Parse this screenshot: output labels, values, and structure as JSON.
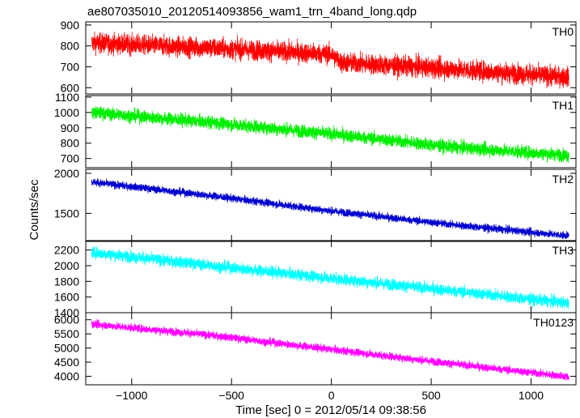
{
  "chart_data": {
    "type": "line",
    "title": "ae807035010_20120514093856_wam1_trn_4band_long.qdp",
    "xlabel": "Time [sec] 0 = 2012/05/14 09:38:56",
    "ylabel": "Counts/sec",
    "xlim": [
      -1230,
      1225
    ],
    "x_ticks": [
      -1000,
      -500,
      0,
      500,
      1000
    ],
    "x_tick_labels": [
      "−1000",
      "−500",
      "0",
      "500",
      "1000"
    ],
    "grid": false,
    "panels": [
      {
        "name": "TH0",
        "color": "#ff0000",
        "ylim": [
          570,
          915
        ],
        "y_ticks": [
          600,
          700,
          800,
          900
        ],
        "trend_x": [
          -1200,
          -600,
          0,
          50,
          600,
          1190
        ],
        "trend_y": [
          815,
          790,
          760,
          720,
          690,
          650
        ],
        "noise_amplitude": 45
      },
      {
        "name": "TH1",
        "color": "#00ee00",
        "ylim": [
          640,
          1110
        ],
        "y_ticks": [
          700,
          800,
          900,
          1000,
          1100
        ],
        "trend_x": [
          -1200,
          -600,
          0,
          600,
          1190
        ],
        "trend_y": [
          1000,
          935,
          860,
          775,
          720
        ],
        "noise_amplitude": 40
      },
      {
        "name": "TH2",
        "color": "#0000cc",
        "ylim": [
          1150,
          2050
        ],
        "y_ticks": [
          1500,
          2000
        ],
        "trend_x": [
          -1200,
          -600,
          0,
          600,
          1190
        ],
        "trend_y": [
          1890,
          1720,
          1530,
          1360,
          1220
        ],
        "noise_amplitude": 45
      },
      {
        "name": "TH3",
        "color": "#00ffff",
        "ylim": [
          1400,
          2320
        ],
        "y_ticks": [
          1400,
          1600,
          1800,
          2000,
          2200
        ],
        "trend_x": [
          -1200,
          -600,
          0,
          600,
          1190
        ],
        "trend_y": [
          2170,
          2000,
          1840,
          1680,
          1520
        ],
        "noise_amplitude": 70
      },
      {
        "name": "TH0123",
        "color": "#ff00ff",
        "ylim": [
          3700,
          6250
        ],
        "y_ticks": [
          4000,
          4500,
          5000,
          5500,
          6000
        ],
        "trend_x": [
          -1200,
          -600,
          0,
          600,
          1190
        ],
        "trend_y": [
          5850,
          5450,
          4950,
          4450,
          3980
        ],
        "noise_amplitude": 130
      }
    ]
  }
}
